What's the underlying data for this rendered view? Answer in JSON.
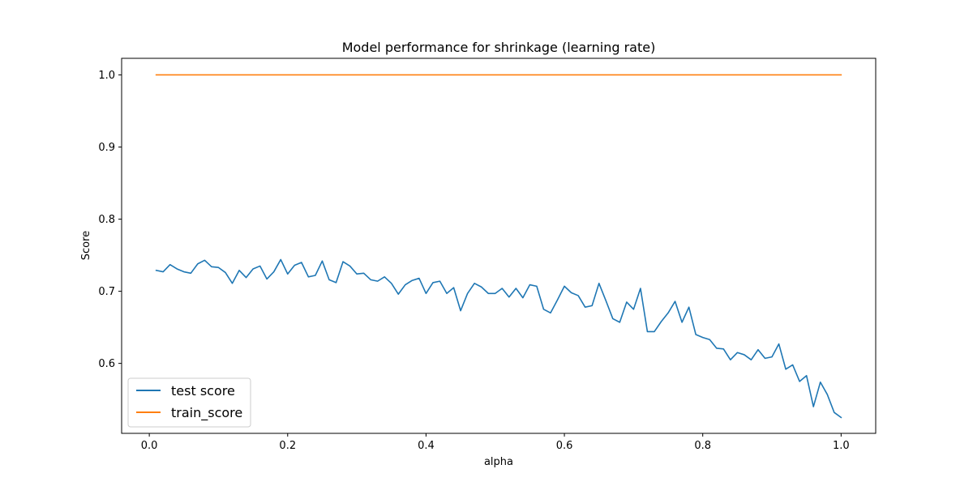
{
  "chart_data": {
    "type": "line",
    "title": "Model performance for shrinkage (learning rate)",
    "xlabel": "alpha",
    "ylabel": "Score",
    "xlim": [
      -0.04,
      1.05
    ],
    "ylim": [
      0.503,
      1.023
    ],
    "xticks": [
      0.0,
      0.2,
      0.4,
      0.6,
      0.8,
      1.0
    ],
    "xtick_labels": [
      "0.0",
      "0.2",
      "0.4",
      "0.6",
      "0.8",
      "1.0"
    ],
    "yticks": [
      0.6,
      0.7,
      0.8,
      0.9,
      1.0
    ],
    "ytick_labels": [
      "0.6",
      "0.7",
      "0.8",
      "0.9",
      "1.0"
    ],
    "grid": false,
    "legend_position": "lower-left",
    "x": [
      0.01,
      0.02,
      0.03,
      0.04,
      0.05,
      0.06,
      0.07,
      0.08,
      0.09,
      0.1,
      0.11,
      0.12,
      0.13,
      0.14,
      0.15,
      0.16,
      0.17,
      0.18,
      0.19,
      0.2,
      0.21,
      0.22,
      0.23,
      0.24,
      0.25,
      0.26,
      0.27,
      0.28,
      0.29,
      0.3,
      0.31,
      0.32,
      0.33,
      0.34,
      0.35,
      0.36,
      0.37,
      0.38,
      0.39,
      0.4,
      0.41,
      0.42,
      0.43,
      0.44,
      0.45,
      0.46,
      0.47,
      0.48,
      0.49,
      0.5,
      0.51,
      0.52,
      0.53,
      0.54,
      0.55,
      0.56,
      0.57,
      0.58,
      0.59,
      0.6,
      0.61,
      0.62,
      0.63,
      0.64,
      0.65,
      0.66,
      0.67,
      0.68,
      0.69,
      0.7,
      0.71,
      0.72,
      0.73,
      0.74,
      0.75,
      0.76,
      0.77,
      0.78,
      0.79,
      0.8,
      0.81,
      0.82,
      0.83,
      0.84,
      0.85,
      0.86,
      0.87,
      0.88,
      0.89,
      0.9,
      0.91,
      0.92,
      0.93,
      0.94,
      0.95,
      0.96,
      0.97,
      0.98,
      0.99,
      1.0
    ],
    "series": [
      {
        "name": "test score",
        "color": "#1f77b4",
        "values": [
          0.729,
          0.727,
          0.737,
          0.731,
          0.727,
          0.725,
          0.738,
          0.743,
          0.734,
          0.733,
          0.726,
          0.711,
          0.729,
          0.719,
          0.731,
          0.735,
          0.717,
          0.727,
          0.744,
          0.724,
          0.736,
          0.74,
          0.72,
          0.722,
          0.742,
          0.716,
          0.712,
          0.741,
          0.735,
          0.724,
          0.725,
          0.716,
          0.714,
          0.72,
          0.711,
          0.696,
          0.709,
          0.715,
          0.718,
          0.697,
          0.712,
          0.714,
          0.697,
          0.705,
          0.673,
          0.697,
          0.711,
          0.706,
          0.697,
          0.697,
          0.704,
          0.692,
          0.704,
          0.691,
          0.709,
          0.707,
          0.675,
          0.67,
          0.688,
          0.707,
          0.698,
          0.694,
          0.678,
          0.68,
          0.711,
          0.687,
          0.662,
          0.657,
          0.685,
          0.675,
          0.704,
          0.644,
          0.644,
          0.658,
          0.67,
          0.686,
          0.657,
          0.678,
          0.64,
          0.636,
          0.633,
          0.621,
          0.62,
          0.605,
          0.615,
          0.612,
          0.605,
          0.619,
          0.607,
          0.609,
          0.627,
          0.592,
          0.598,
          0.575,
          0.583,
          0.54,
          0.574,
          0.557,
          0.532,
          0.525
        ]
      },
      {
        "name": "train_score",
        "color": "#ff7f0e",
        "values": [
          1.0,
          1.0,
          1.0,
          1.0,
          1.0,
          1.0,
          1.0,
          1.0,
          1.0,
          1.0,
          1.0,
          1.0,
          1.0,
          1.0,
          1.0,
          1.0,
          1.0,
          1.0,
          1.0,
          1.0,
          1.0,
          1.0,
          1.0,
          1.0,
          1.0,
          1.0,
          1.0,
          1.0,
          1.0,
          1.0,
          1.0,
          1.0,
          1.0,
          1.0,
          1.0,
          1.0,
          1.0,
          1.0,
          1.0,
          1.0,
          1.0,
          1.0,
          1.0,
          1.0,
          1.0,
          1.0,
          1.0,
          1.0,
          1.0,
          1.0,
          1.0,
          1.0,
          1.0,
          1.0,
          1.0,
          1.0,
          1.0,
          1.0,
          1.0,
          1.0,
          1.0,
          1.0,
          1.0,
          1.0,
          1.0,
          1.0,
          1.0,
          1.0,
          1.0,
          1.0,
          1.0,
          1.0,
          1.0,
          1.0,
          1.0,
          1.0,
          1.0,
          1.0,
          1.0,
          1.0,
          1.0,
          1.0,
          1.0,
          1.0,
          1.0,
          1.0,
          1.0,
          1.0,
          1.0,
          1.0,
          1.0,
          1.0,
          1.0,
          1.0,
          1.0,
          1.0,
          1.0,
          1.0,
          1.0,
          1.0
        ]
      }
    ]
  }
}
